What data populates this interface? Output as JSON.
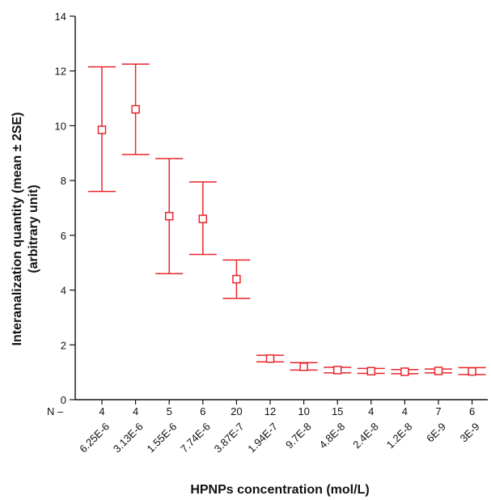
{
  "chart_data": {
    "type": "scatter",
    "xlabel": "HPNPs concentration (mol/L)",
    "ylabel_line1": "Interanalization quantity (mean ± 2SE)",
    "ylabel_line2": "(arbitrary unit)",
    "ylim": [
      0,
      14
    ],
    "yticks": [
      "0",
      "2",
      "4",
      "6",
      "8",
      "10",
      "12",
      "14"
    ],
    "n_prefix": "N –",
    "categories": [
      "6.25E-6",
      "3.13E-6",
      "1.55E-6",
      "7.74E-6",
      "3.87E-7",
      "1.94E-7",
      "9.7E-8",
      "4.8E-8",
      "2.4E-8",
      "1.2E-8",
      "6E-9",
      "3E-9"
    ],
    "n": [
      "4",
      "4",
      "5",
      "6",
      "20",
      "12",
      "10",
      "15",
      "4",
      "4",
      "7",
      "6"
    ],
    "mean": [
      9.85,
      10.6,
      6.7,
      6.6,
      4.4,
      1.5,
      1.2,
      1.08,
      1.04,
      1.02,
      1.05,
      1.03
    ],
    "upper": [
      12.15,
      12.25,
      8.8,
      7.95,
      5.1,
      1.62,
      1.35,
      1.18,
      1.14,
      1.1,
      1.12,
      1.17
    ],
    "lower": [
      7.6,
      8.95,
      4.6,
      5.3,
      3.7,
      1.38,
      1.08,
      0.98,
      0.96,
      0.95,
      0.98,
      0.92
    ],
    "color": "#e8262c",
    "grid": false
  }
}
